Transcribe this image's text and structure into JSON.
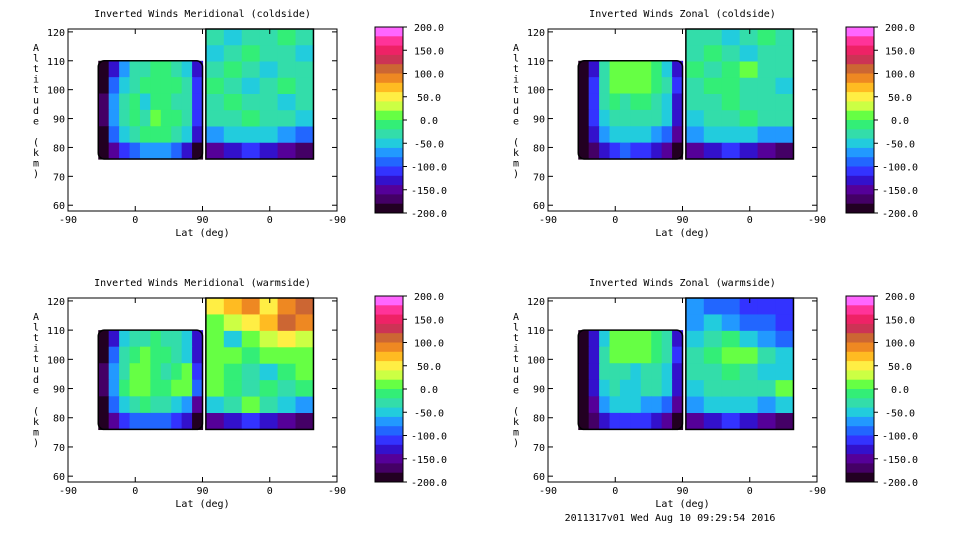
{
  "footer_text": "2011317v01 Wed Aug 10 09:29:54 2016",
  "colorbar": {
    "ticks": [
      "200.0",
      "150.0",
      "100.0",
      "50.0",
      "0.0",
      "-50.0",
      "-100.0",
      "-150.0",
      "-200.0"
    ],
    "colors": [
      "#ff66ff",
      "#ff3399",
      "#ee2266",
      "#cc3355",
      "#cc6633",
      "#ee8822",
      "#ffbb22",
      "#ffee44",
      "#ccff44",
      "#66ff44",
      "#33ee77",
      "#33ddaa",
      "#22ccdd",
      "#2299ff",
      "#2266ff",
      "#3333ff",
      "#3311cc",
      "#550099",
      "#440066",
      "#220022"
    ]
  },
  "chart_data": [
    {
      "type": "heatmap",
      "title": "Inverted Winds Meridional (coldside)",
      "xlabel": "Lat (deg)",
      "ylabel": "Altitude (km)",
      "xticks": [
        "-90",
        "0",
        "90",
        "0",
        "-90"
      ],
      "yticks": [
        "60",
        "70",
        "80",
        "90",
        "100",
        "110",
        "120"
      ],
      "ylim": [
        58,
        121
      ],
      "zlim": [
        -200,
        200
      ],
      "mesosphere_alt": [
        76,
        110
      ],
      "thermosphere_alt": [
        76,
        121
      ],
      "values": [
        [
          -200,
          -120,
          -60,
          -30,
          -20,
          -10,
          -15,
          -20,
          -40,
          -120
        ],
        [
          -180,
          -80,
          -40,
          -20,
          -10,
          -5,
          -10,
          -15,
          -30,
          -100
        ],
        [
          -170,
          -70,
          -30,
          -15,
          -40,
          -5,
          -10,
          -20,
          -35,
          -110
        ],
        [
          -170,
          -60,
          -20,
          -10,
          -30,
          5,
          -5,
          -10,
          -25,
          -100
        ],
        [
          -180,
          -80,
          -40,
          -20,
          -10,
          -5,
          -15,
          -20,
          -40,
          -120
        ],
        [
          -200,
          -140,
          -100,
          -80,
          -70,
          -60,
          -70,
          -90,
          -120,
          -180
        ]
      ],
      "values_upper": [
        [
          -30,
          -40,
          -20,
          -30,
          -10,
          -20
        ],
        [
          -40,
          -30,
          -10,
          -20,
          -30,
          -40
        ],
        [
          -20,
          -10,
          -30,
          -40,
          -20,
          -30
        ],
        [
          -10,
          -30,
          -40,
          -20,
          -10,
          -20
        ],
        [
          -20,
          -10,
          -20,
          -30,
          -40,
          -30
        ],
        [
          -30,
          -20,
          -10,
          -20,
          -30,
          -40
        ],
        [
          -60,
          -50,
          -40,
          -50,
          -60,
          -80
        ],
        [
          -150,
          -120,
          -110,
          -120,
          -140,
          -170
        ]
      ]
    },
    {
      "type": "heatmap",
      "title": "Inverted Winds Zonal (coldside)",
      "xlabel": "Lat (deg)",
      "ylabel": "Altitude (km)",
      "xticks": [
        "-90",
        "0",
        "90",
        "0",
        "-90"
      ],
      "yticks": [
        "60",
        "70",
        "80",
        "90",
        "100",
        "110",
        "120"
      ],
      "ylim": [
        58,
        121
      ],
      "zlim": [
        -200,
        200
      ],
      "mesosphere_alt": [
        76,
        110
      ],
      "thermosphere_alt": [
        76,
        121
      ],
      "values": [
        [
          -200,
          -120,
          -30,
          5,
          10,
          10,
          5,
          -10,
          -40,
          -120
        ],
        [
          -200,
          -100,
          -20,
          10,
          20,
          15,
          5,
          -5,
          -30,
          -110
        ],
        [
          -200,
          -100,
          -30,
          -10,
          -20,
          -10,
          -15,
          -20,
          -40,
          -120
        ],
        [
          -200,
          -110,
          -40,
          -30,
          -20,
          -25,
          -30,
          -35,
          -50,
          -130
        ],
        [
          -200,
          -130,
          -60,
          -50,
          -45,
          -50,
          -55,
          -60,
          -80,
          -150
        ],
        [
          -200,
          -160,
          -120,
          -100,
          -90,
          -100,
          -110,
          -120,
          -150,
          -190
        ]
      ],
      "values_upper": [
        [
          -20,
          -30,
          -40,
          -20,
          -10,
          -30
        ],
        [
          -30,
          -10,
          -20,
          -40,
          -30,
          -20
        ],
        [
          -10,
          -20,
          -5,
          10,
          -20,
          -30
        ],
        [
          -20,
          -10,
          -5,
          -20,
          -30,
          -40
        ],
        [
          -30,
          -20,
          -10,
          -30,
          -20,
          -30
        ],
        [
          -40,
          -30,
          -20,
          -10,
          -20,
          -30
        ],
        [
          -60,
          -50,
          -40,
          -50,
          -60,
          -70
        ],
        [
          -150,
          -130,
          -110,
          -120,
          -140,
          -160
        ]
      ]
    },
    {
      "type": "heatmap",
      "title": "Inverted Winds Meridional (warmside)",
      "xlabel": "Lat (deg)",
      "ylabel": "Altitude (km)",
      "xticks": [
        "-90",
        "0",
        "90",
        "0",
        "-90"
      ],
      "yticks": [
        "60",
        "70",
        "80",
        "90",
        "100",
        "110",
        "120"
      ],
      "ylim": [
        58,
        121
      ],
      "zlim": [
        -200,
        200
      ],
      "mesosphere_alt": [
        76,
        110
      ],
      "thermosphere_alt": [
        76,
        121
      ],
      "values": [
        [
          -200,
          -120,
          -50,
          -30,
          -20,
          -10,
          -20,
          -30,
          -50,
          -130
        ],
        [
          -180,
          -80,
          -30,
          -10,
          5,
          -5,
          -10,
          -20,
          -40,
          -120
        ],
        [
          -170,
          -70,
          -20,
          5,
          10,
          -10,
          -20,
          -10,
          5,
          -100
        ],
        [
          -170,
          -70,
          -10,
          10,
          20,
          -5,
          -10,
          5,
          10,
          -90
        ],
        [
          -180,
          -90,
          -40,
          -20,
          -10,
          -20,
          -30,
          -40,
          -60,
          -140
        ],
        [
          -200,
          -150,
          -110,
          -90,
          -80,
          -80,
          -90,
          -100,
          -130,
          -190
        ]
      ],
      "values_upper": [
        [
          50,
          80,
          90,
          60,
          100,
          120
        ],
        [
          20,
          40,
          60,
          80,
          110,
          100
        ],
        [
          10,
          -40,
          20,
          30,
          50,
          40
        ],
        [
          5,
          20,
          -10,
          10,
          20,
          10
        ],
        [
          10,
          -10,
          -30,
          -40,
          -10,
          5
        ],
        [
          5,
          -10,
          -20,
          -10,
          -30,
          -10
        ],
        [
          -50,
          -30,
          10,
          -20,
          -40,
          -60
        ],
        [
          -150,
          -130,
          -110,
          -120,
          -140,
          -170
        ]
      ]
    },
    {
      "type": "heatmap",
      "title": "Inverted Winds Zonal (warmside)",
      "xlabel": "Lat (deg)",
      "ylabel": "Altitude (km)",
      "xticks": [
        "-90",
        "0",
        "90",
        "0",
        "-90"
      ],
      "yticks": [
        "60",
        "70",
        "80",
        "90",
        "100",
        "110",
        "120"
      ],
      "ylim": [
        58,
        121
      ],
      "zlim": [
        -200,
        200
      ],
      "mesosphere_alt": [
        76,
        110
      ],
      "thermosphere_alt": [
        76,
        121
      ],
      "values": [
        [
          -200,
          -130,
          -40,
          10,
          15,
          10,
          5,
          -5,
          -30,
          -120
        ],
        [
          -200,
          -120,
          -30,
          15,
          20,
          10,
          5,
          -5,
          -30,
          -110
        ],
        [
          -200,
          -120,
          -30,
          -20,
          -30,
          -40,
          -25,
          -20,
          -40,
          -120
        ],
        [
          -200,
          -120,
          -40,
          -30,
          -40,
          -45,
          -30,
          -25,
          -40,
          -120
        ],
        [
          -200,
          -140,
          -60,
          -50,
          -50,
          -55,
          -60,
          -60,
          -80,
          -150
        ],
        [
          -200,
          -170,
          -120,
          -100,
          -100,
          -100,
          -110,
          -120,
          -150,
          -190
        ]
      ],
      "values_upper": [
        [
          -70,
          -80,
          -90,
          -100,
          -110,
          -100
        ],
        [
          -60,
          -50,
          -70,
          -80,
          -90,
          -100
        ],
        [
          -40,
          -20,
          -10,
          -40,
          -60,
          -80
        ],
        [
          -20,
          -10,
          15,
          10,
          -30,
          -50
        ],
        [
          -30,
          -20,
          -10,
          -20,
          -40,
          -40
        ],
        [
          -40,
          -30,
          -20,
          -30,
          -20,
          10
        ],
        [
          -60,
          -50,
          -40,
          -50,
          -60,
          -40
        ],
        [
          -150,
          -130,
          -110,
          -120,
          -140,
          -160
        ]
      ]
    }
  ]
}
